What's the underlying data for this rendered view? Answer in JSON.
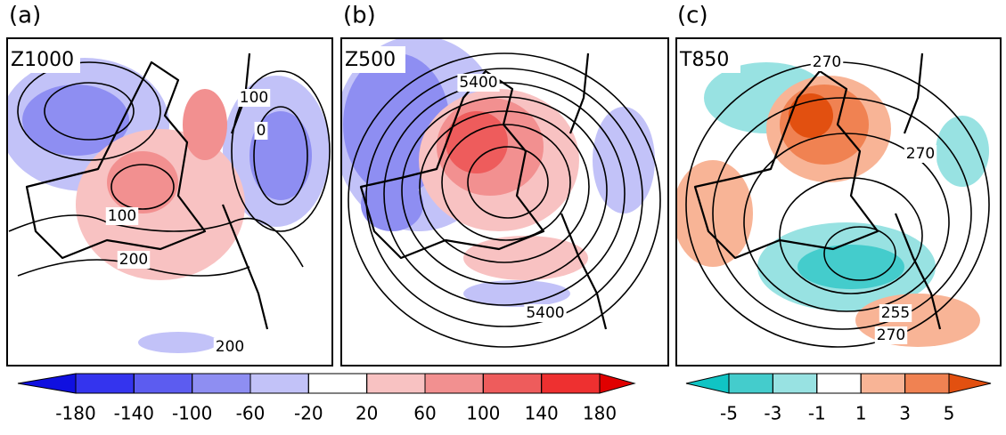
{
  "panels": [
    {
      "label": "(a)",
      "title": "Z1000",
      "contour_labels": [
        100,
        0,
        100,
        200,
        200
      ]
    },
    {
      "label": "(b)",
      "title": "Z500",
      "contour_labels": [
        5400,
        5400
      ]
    },
    {
      "label": "(c)",
      "title": "T850",
      "contour_labels": [
        270,
        270,
        255,
        270
      ]
    }
  ],
  "colorbars": [
    {
      "ticks": [
        -180,
        -140,
        -100,
        -60,
        -20,
        20,
        60,
        100,
        140,
        180
      ],
      "colors": [
        "#1010e0",
        "#3434ee",
        "#5c5cf0",
        "#8e8ef2",
        "#c2c2f8",
        "#ffffff",
        "#f8c2c2",
        "#f29090",
        "#ee5c5c",
        "#ee3030",
        "#e00000"
      ]
    },
    {
      "ticks": [
        -5,
        -3,
        -1,
        1,
        3,
        5
      ],
      "colors": [
        "#10c4c4",
        "#44cccc",
        "#98e2e2",
        "#ffffff",
        "#f8b496",
        "#f08252",
        "#e25010"
      ]
    }
  ]
}
